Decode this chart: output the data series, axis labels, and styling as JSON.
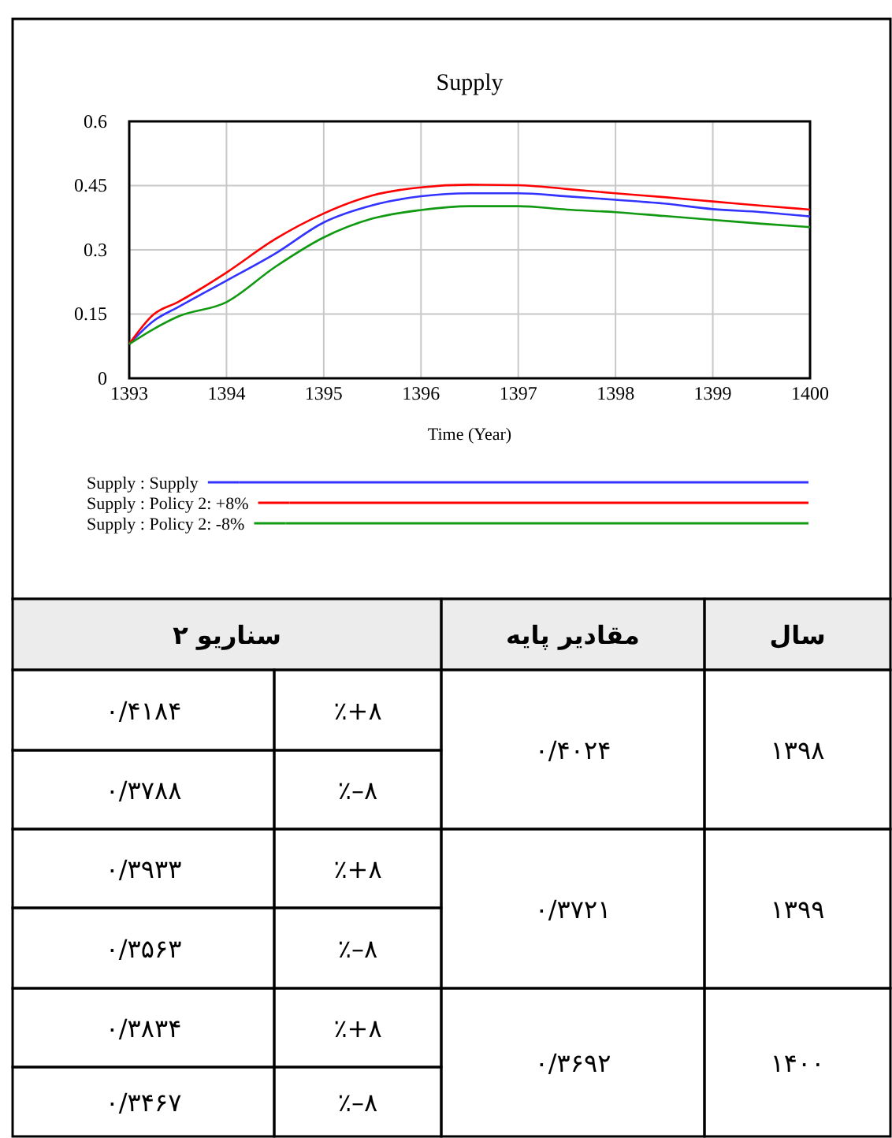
{
  "chart_data": [
    {
      "type": "line",
      "title": "Supply",
      "xlabel": "Time (Year)",
      "x": [
        1393,
        1393.25,
        1393.5,
        1394,
        1394.5,
        1395,
        1395.5,
        1396,
        1396.5,
        1397,
        1397.5,
        1398,
        1398.5,
        1399,
        1399.5,
        1400
      ],
      "series": [
        {
          "name": "Supply : Supply",
          "color": "#3333ff",
          "values": [
            0.08,
            0.134,
            0.166,
            0.228,
            0.291,
            0.364,
            0.404,
            0.425,
            0.432,
            0.432,
            0.425,
            0.417,
            0.408,
            0.395,
            0.388,
            0.378
          ]
        },
        {
          "name": "Supply : Policy 2: +8%",
          "color": "#ff0000",
          "values": [
            0.08,
            0.149,
            0.178,
            0.247,
            0.325,
            0.385,
            0.427,
            0.446,
            0.452,
            0.451,
            0.442,
            0.432,
            0.423,
            0.413,
            0.403,
            0.394
          ]
        },
        {
          "name": "Supply : Policy 2: -8%",
          "color": "#119911",
          "values": [
            0.08,
            0.115,
            0.144,
            0.178,
            0.26,
            0.329,
            0.373,
            0.393,
            0.402,
            0.402,
            0.394,
            0.388,
            0.379,
            0.37,
            0.361,
            0.353
          ]
        }
      ],
      "xlim": [
        1393,
        1400
      ],
      "xticks": [
        1393,
        1394,
        1395,
        1396,
        1397,
        1398,
        1399,
        1400
      ],
      "ylim": [
        0,
        0.6
      ],
      "yticks": [
        0,
        0.15,
        0.3,
        0.45,
        0.6
      ],
      "grid": true,
      "legend": "bottom",
      "marker": "none",
      "line_style": "solid"
    },
    {
      "type": "other",
      "annotations": [
        "سال",
        "مقادیر پایه",
        "سناریو ۲",
        "۱۳۹۸",
        "۰/۴۰۲۴",
        "٪+۸",
        "۰/۴۱۸۴",
        "٪–۸",
        "۰/۳۷۸۸",
        "۱۳۹۹",
        "۰/۳۷۲۱",
        "٪+۸",
        "۰/۳۹۳۳",
        "٪–۸",
        "۰/۳۵۶۳",
        "۱۴۰۰",
        "۰/۳۶۹۲",
        "٪+۸",
        "۰/۳۸۳۴",
        "٪–۸",
        "۰/۳۴۶۷"
      ]
    }
  ]
}
